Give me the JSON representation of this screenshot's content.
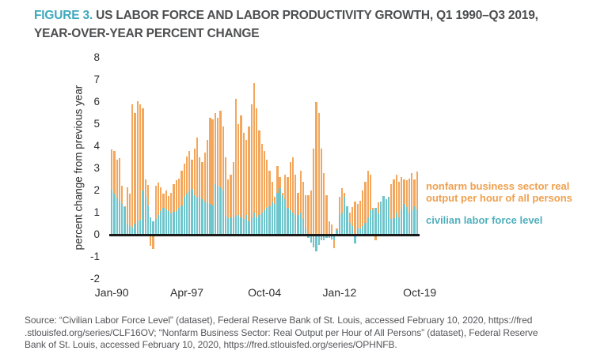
{
  "title": {
    "figure_label": "FIGURE 3.",
    "line1_rest": " US LABOR FORCE AND LABOR PRODUCTIVITY GROWTH, Q1 1990–Q3 2019,",
    "line2": "YEAR-OVER-YEAR PERCENT CHANGE"
  },
  "colors": {
    "figure_label_teal": "#3EA8BE",
    "title_gray": "#4D4E50",
    "productivity_bar_orange": "#F3A75C",
    "labor_force_bar_teal": "#6FC5CC",
    "legend_orange_text": "#EFA04F",
    "legend_teal_text": "#4FAFBC",
    "axis_text": "#2E2E30",
    "baseline_black": "#1A1A1A",
    "source_gray": "#55565A"
  },
  "chart_data": {
    "type": "bar",
    "title": "US labor force and labor productivity growth, Q1 1990–Q3 2019, year-over-year percent change",
    "xlabel": "",
    "ylabel": "percent change from previous year",
    "ylim": [
      -2,
      8
    ],
    "yticks": [
      8,
      7,
      6,
      5,
      4,
      3,
      2,
      1,
      0,
      -1,
      -2
    ],
    "grid": false,
    "legend_position": "right",
    "x_period": "quarterly",
    "x_start": "Q1 1990",
    "x_end": "Q3 2019",
    "xticks": [
      {
        "label": "Jan-90",
        "index": 0
      },
      {
        "label": "Apr-97",
        "index": 29
      },
      {
        "label": "Oct-04",
        "index": 59
      },
      {
        "label": "Jan-12",
        "index": 88
      },
      {
        "label": "Oct-19",
        "index": 119
      }
    ],
    "series": [
      {
        "name": "nonfarm business sector real output per hour of all persons",
        "color": "#F3A75C",
        "values": [
          3.85,
          3.8,
          3.4,
          3.45,
          2.2,
          1.3,
          2.15,
          1.85,
          5.9,
          5.5,
          6.05,
          5.9,
          5.7,
          2.5,
          2.25,
          -0.45,
          -0.6,
          2.2,
          2.35,
          2.15,
          1.85,
          2.0,
          1.75,
          1.9,
          2.3,
          2.45,
          2.55,
          2.9,
          3.2,
          3.55,
          3.8,
          3.4,
          3.9,
          4.4,
          3.5,
          3.3,
          3.7,
          4.3,
          5.3,
          5.2,
          5.5,
          5.3,
          5.6,
          4.9,
          3.5,
          2.5,
          2.7,
          3.3,
          6.15,
          5.0,
          5.4,
          4.6,
          4.3,
          4.9,
          5.9,
          6.85,
          5.7,
          4.7,
          4.1,
          3.8,
          3.4,
          2.9,
          2.4,
          1.7,
          3.1,
          2.6,
          1.9,
          2.7,
          2.6,
          3.3,
          3.5,
          2.7,
          1.9,
          2.9,
          2.4,
          1.8,
          1.8,
          2.0,
          3.9,
          6.0,
          5.5,
          3.9,
          2.8,
          1.8,
          0.6,
          0.45,
          -0.55,
          0.3,
          1.7,
          2.1,
          1.9,
          0.9,
          1.0,
          1.25,
          1.5,
          1.4,
          1.55,
          2.0,
          2.4,
          2.9,
          2.7,
          1.2,
          -0.2,
          1.45,
          1.3,
          1.1,
          1.3,
          1.5,
          2.3,
          2.5,
          2.7,
          2.4,
          2.6,
          2.5,
          2.45,
          2.55,
          2.8,
          2.5,
          2.85
        ]
      },
      {
        "name": "civilian labor force level",
        "color": "#6FC5CC",
        "values": [
          2.02,
          1.85,
          1.67,
          1.53,
          1.38,
          1.26,
          0.45,
          0.4,
          0.33,
          0.5,
          0.6,
          0.67,
          2.0,
          1.73,
          1.32,
          0.79,
          0.61,
          0.73,
          0.9,
          1.08,
          1.2,
          1.14,
          1.08,
          0.96,
          1.02,
          1.08,
          1.2,
          1.32,
          1.73,
          1.85,
          1.96,
          2.08,
          1.79,
          1.67,
          1.73,
          1.61,
          1.49,
          1.44,
          1.38,
          1.32,
          2.3,
          2.2,
          2.15,
          2.0,
          0.85,
          0.75,
          0.8,
          0.8,
          0.85,
          0.9,
          0.8,
          0.7,
          0.9,
          0.6,
          0.8,
          1.0,
          0.8,
          0.9,
          1.0,
          1.1,
          1.2,
          1.3,
          1.5,
          1.4,
          1.9,
          2.1,
          1.8,
          1.6,
          1.2,
          1.1,
          1.0,
          0.9,
          0.9,
          1.0,
          0.7,
          0.3,
          -0.1,
          -0.3,
          -0.5,
          -0.7,
          -0.4,
          -0.2,
          -0.2,
          -0.1,
          -0.1,
          -0.15,
          -0.2,
          0.2,
          0.9,
          1.0,
          1.7,
          1.3,
          0.55,
          0.4,
          -0.35,
          0.3,
          0.3,
          0.4,
          0.55,
          0.8,
          1.1,
          1.15,
          1.2,
          0.95,
          1.5,
          1.75,
          1.6,
          1.7,
          0.7,
          0.75,
          1.0,
          0.8,
          1.15,
          1.4,
          1.25,
          1.0,
          1.1,
          1.3,
          1.15
        ]
      }
    ]
  },
  "legend": {
    "items": [
      {
        "label": "nonfarm business sector real output per hour of all persons",
        "text_color": "#EFA04F"
      },
      {
        "label": "civilian labor force level",
        "text_color": "#4FAFBC"
      }
    ]
  },
  "source": {
    "lines": [
      "Source: “Civilian Labor Force Level” (dataset), Federal Reserve Bank of St. Louis, accessed February 10, 2020, https://fred",
      ".stlouisfed.org/series/CLF16OV; “Nonfarm Business Sector: Real Output per Hour of All Persons” (dataset), Federal Reserve",
      "Bank of St. Louis, accessed February 10, 2020, https://fred.stlouisfed.org/series/OPHNFB."
    ]
  }
}
